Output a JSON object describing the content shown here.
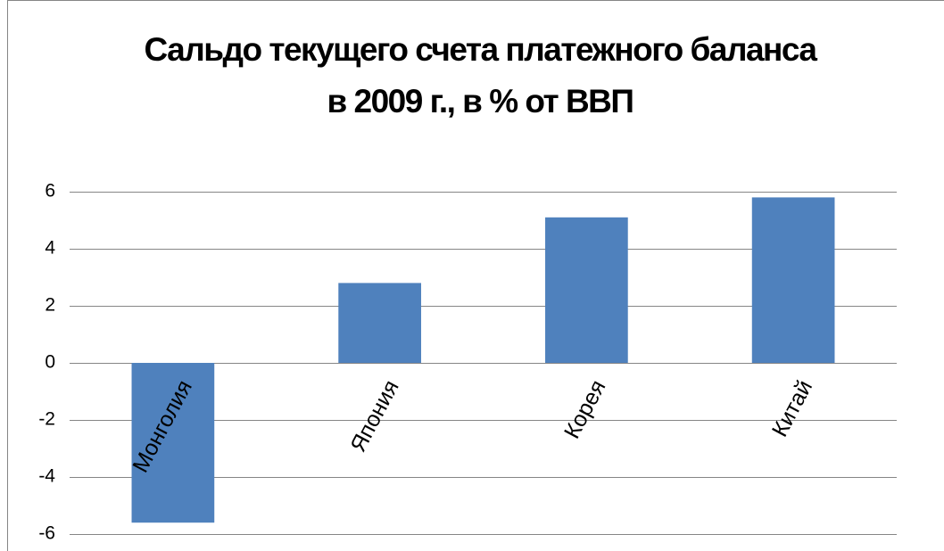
{
  "chart_data": {
    "type": "bar",
    "title": [
      "Сальдо текущего счета платежного баланса",
      "в 2009 г., в % от ВВП"
    ],
    "categories": [
      "Монголия",
      "Япония",
      "Корея",
      "Китай"
    ],
    "values": [
      -5.6,
      2.8,
      5.1,
      5.8
    ],
    "color": "#4f81bd",
    "ylim": [
      -6,
      6
    ],
    "yticks": [
      -6,
      -4,
      -2,
      0,
      2,
      4,
      6
    ],
    "grid": true
  }
}
